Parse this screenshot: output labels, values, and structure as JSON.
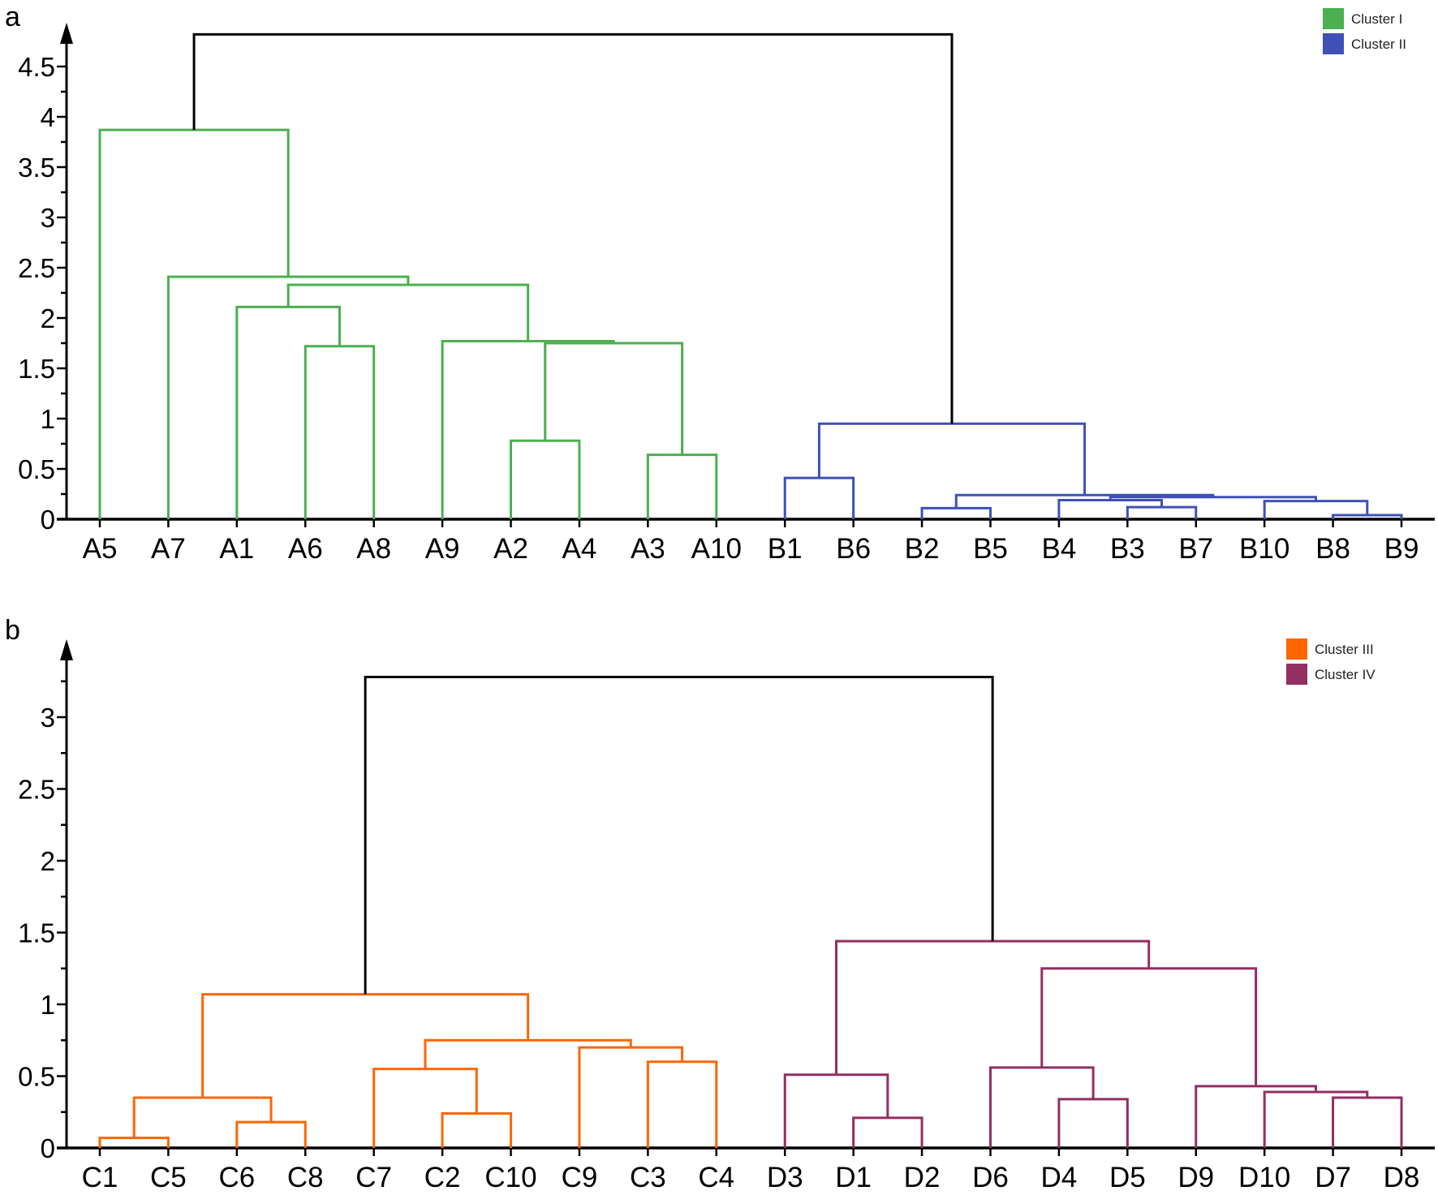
{
  "chart_data": [
    {
      "panel": "a",
      "type": "dendrogram",
      "title": "",
      "xlabel": "",
      "ylabel": "",
      "ylim": [
        0,
        4.9
      ],
      "yticks": [
        0,
        0.5,
        1,
        1.5,
        2,
        2.5,
        3,
        3.5,
        4,
        4.5
      ],
      "ytick_labels": [
        "0",
        "0.5",
        "1",
        "1.5",
        "2",
        "2.5",
        "3",
        "3.5",
        "4",
        "4.5"
      ],
      "minor_ticks": true,
      "grid": false,
      "legend_position": "top-right",
      "legend": [
        {
          "label": "Cluster I",
          "color": "#4caf50"
        },
        {
          "label": "Cluster II",
          "color": "#3f51b5"
        }
      ],
      "root_color": "#000000",
      "leaves": [
        "A5",
        "A7",
        "A1",
        "A6",
        "A8",
        "A9",
        "A2",
        "A4",
        "A3",
        "A10",
        "B1",
        "B6",
        "B2",
        "B5",
        "B4",
        "B3",
        "B7",
        "B10",
        "B8",
        "B9"
      ],
      "merges": [
        {
          "id": "a1",
          "left": "A6",
          "right": "A8",
          "height": 1.72,
          "cluster": 0
        },
        {
          "id": "a2",
          "left": "A1",
          "right": "a1",
          "height": 2.11,
          "cluster": 0
        },
        {
          "id": "a3",
          "left": "A2",
          "right": "A4",
          "height": 0.78,
          "cluster": 0
        },
        {
          "id": "a4",
          "left": "A3",
          "right": "A10",
          "height": 0.64,
          "cluster": 0
        },
        {
          "id": "a5",
          "left": "a3",
          "right": "a4",
          "height": 1.75,
          "cluster": 0
        },
        {
          "id": "a6",
          "left": "A9",
          "right": "a5",
          "height": 1.77,
          "cluster": 0
        },
        {
          "id": "a7",
          "left": "a2",
          "right": "a6",
          "height": 2.33,
          "cluster": 0
        },
        {
          "id": "a8",
          "left": "A7",
          "right": "a7",
          "height": 2.41,
          "cluster": 0
        },
        {
          "id": "a9",
          "left": "A5",
          "right": "a8",
          "height": 3.87,
          "cluster": 0
        },
        {
          "id": "b1",
          "left": "B1",
          "right": "B6",
          "height": 0.41,
          "cluster": 1
        },
        {
          "id": "b2",
          "left": "B2",
          "right": "B5",
          "height": 0.11,
          "cluster": 1
        },
        {
          "id": "b3",
          "left": "B3",
          "right": "B7",
          "height": 0.12,
          "cluster": 1
        },
        {
          "id": "b4",
          "left": "B4",
          "right": "b3",
          "height": 0.19,
          "cluster": 1
        },
        {
          "id": "b5",
          "left": "B8",
          "right": "B9",
          "height": 0.04,
          "cluster": 1
        },
        {
          "id": "b6",
          "left": "B10",
          "right": "b5",
          "height": 0.18,
          "cluster": 1
        },
        {
          "id": "b7",
          "left": "b4",
          "right": "b6",
          "height": 0.22,
          "cluster": 1
        },
        {
          "id": "b8",
          "left": "b2",
          "right": "b7",
          "height": 0.24,
          "cluster": 1
        },
        {
          "id": "b9",
          "left": "b1",
          "right": "b8",
          "height": 0.95,
          "cluster": 1
        },
        {
          "id": "root",
          "left": "a9",
          "right": "b9",
          "height": 4.82,
          "cluster": -1
        }
      ]
    },
    {
      "panel": "b",
      "type": "dendrogram",
      "title": "",
      "xlabel": "",
      "ylabel": "",
      "ylim": [
        0,
        3.4
      ],
      "yticks": [
        0,
        0.5,
        1,
        1.5,
        2,
        2.5,
        3
      ],
      "ytick_labels": [
        "0",
        "0.5",
        "1",
        "1.5",
        "2",
        "2.5",
        "3"
      ],
      "minor_ticks": true,
      "grid": false,
      "legend_position": "top-right",
      "legend": [
        {
          "label": "Cluster III",
          "color": "#ff6600"
        },
        {
          "label": "Cluster IV",
          "color": "#932f61"
        }
      ],
      "root_color": "#000000",
      "leaves": [
        "C1",
        "C5",
        "C6",
        "C8",
        "C7",
        "C2",
        "C10",
        "C9",
        "C3",
        "C4",
        "D3",
        "D1",
        "D2",
        "D6",
        "D4",
        "D5",
        "D9",
        "D10",
        "D7",
        "D8"
      ],
      "merges": [
        {
          "id": "c1",
          "left": "C1",
          "right": "C5",
          "height": 0.07,
          "cluster": 0
        },
        {
          "id": "c2",
          "left": "C6",
          "right": "C8",
          "height": 0.18,
          "cluster": 0
        },
        {
          "id": "c3",
          "left": "c1",
          "right": "c2",
          "height": 0.35,
          "cluster": 0
        },
        {
          "id": "c4",
          "left": "C2",
          "right": "C10",
          "height": 0.24,
          "cluster": 0
        },
        {
          "id": "c5",
          "left": "C7",
          "right": "c4",
          "height": 0.55,
          "cluster": 0
        },
        {
          "id": "c6",
          "left": "C3",
          "right": "C4",
          "height": 0.6,
          "cluster": 0
        },
        {
          "id": "c7",
          "left": "C9",
          "right": "c6",
          "height": 0.7,
          "cluster": 0
        },
        {
          "id": "c8",
          "left": "c5",
          "right": "c7",
          "height": 0.75,
          "cluster": 0
        },
        {
          "id": "c9",
          "left": "c3",
          "right": "c8",
          "height": 1.07,
          "cluster": 0
        },
        {
          "id": "d1",
          "left": "D1",
          "right": "D2",
          "height": 0.21,
          "cluster": 1
        },
        {
          "id": "d2",
          "left": "D3",
          "right": "d1",
          "height": 0.51,
          "cluster": 1
        },
        {
          "id": "d3",
          "left": "D4",
          "right": "D5",
          "height": 0.34,
          "cluster": 1
        },
        {
          "id": "d4",
          "left": "D6",
          "right": "d3",
          "height": 0.56,
          "cluster": 1
        },
        {
          "id": "d5",
          "left": "D7",
          "right": "D8",
          "height": 0.35,
          "cluster": 1
        },
        {
          "id": "d6",
          "left": "D10",
          "right": "d5",
          "height": 0.39,
          "cluster": 1
        },
        {
          "id": "d7",
          "left": "D9",
          "right": "d6",
          "height": 0.43,
          "cluster": 1
        },
        {
          "id": "d8",
          "left": "d4",
          "right": "d7",
          "height": 1.25,
          "cluster": 1
        },
        {
          "id": "d9",
          "left": "d2",
          "right": "d8",
          "height": 1.44,
          "cluster": 1
        },
        {
          "id": "root",
          "left": "c9",
          "right": "d9",
          "height": 3.28,
          "cluster": -1
        }
      ]
    }
  ],
  "panels": {
    "a_label": "a",
    "b_label": "b"
  }
}
